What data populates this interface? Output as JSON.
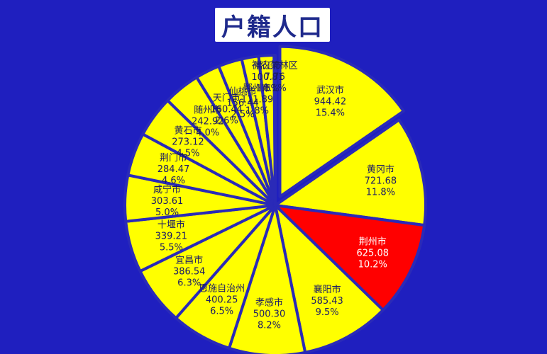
{
  "title": "户籍人口",
  "colors": {
    "background": "#1f1fbf",
    "slice_fill": "#ffff00",
    "highlight_fill": "#ff0000",
    "slice_border": "#2a2ab8",
    "title_text": "#1f2a8c"
  },
  "chart_data": {
    "type": "pie",
    "title": "户籍人口",
    "highlight": "荆州市",
    "slices": [
      {
        "label": "武汉市",
        "value": "944.42",
        "percent": "15.4%",
        "exploded": true
      },
      {
        "label": "黄冈市",
        "value": "721.68",
        "percent": "11.8%"
      },
      {
        "label": "荆州市",
        "value": "625.08",
        "percent": "10.2%",
        "highlight": true
      },
      {
        "label": "襄阳市",
        "value": "585.43",
        "percent": "9.5%"
      },
      {
        "label": "孝感市",
        "value": "500.30",
        "percent": "8.2%"
      },
      {
        "label": "恩施自治州",
        "value": "400.25",
        "percent": "6.5%"
      },
      {
        "label": "宜昌市",
        "value": "386.54",
        "percent": "6.3%"
      },
      {
        "label": "十堰市",
        "value": "339.21",
        "percent": "5.5%"
      },
      {
        "label": "咸宁市",
        "value": "303.61",
        "percent": "5.0%"
      },
      {
        "label": "荆门市",
        "value": "284.47",
        "percent": "4.6%"
      },
      {
        "label": "黄石市",
        "value": "273.12",
        "percent": "4.5%"
      },
      {
        "label": "随州市",
        "value": "242.92",
        "percent": "4.0%"
      },
      {
        "label": "天门市",
        "value": "160.44",
        "percent": "2.6%"
      },
      {
        "label": "仙桃市",
        "value": "156.44",
        "percent": "2.5%"
      },
      {
        "label": "鄂州市",
        "value": "111.89",
        "percent": "1.8%"
      },
      {
        "label": "潜江市",
        "value": "100.81",
        "percent": "1.6%"
      },
      {
        "label": "神农架林区",
        "value": "7.76",
        "percent": "0.1%"
      }
    ]
  }
}
